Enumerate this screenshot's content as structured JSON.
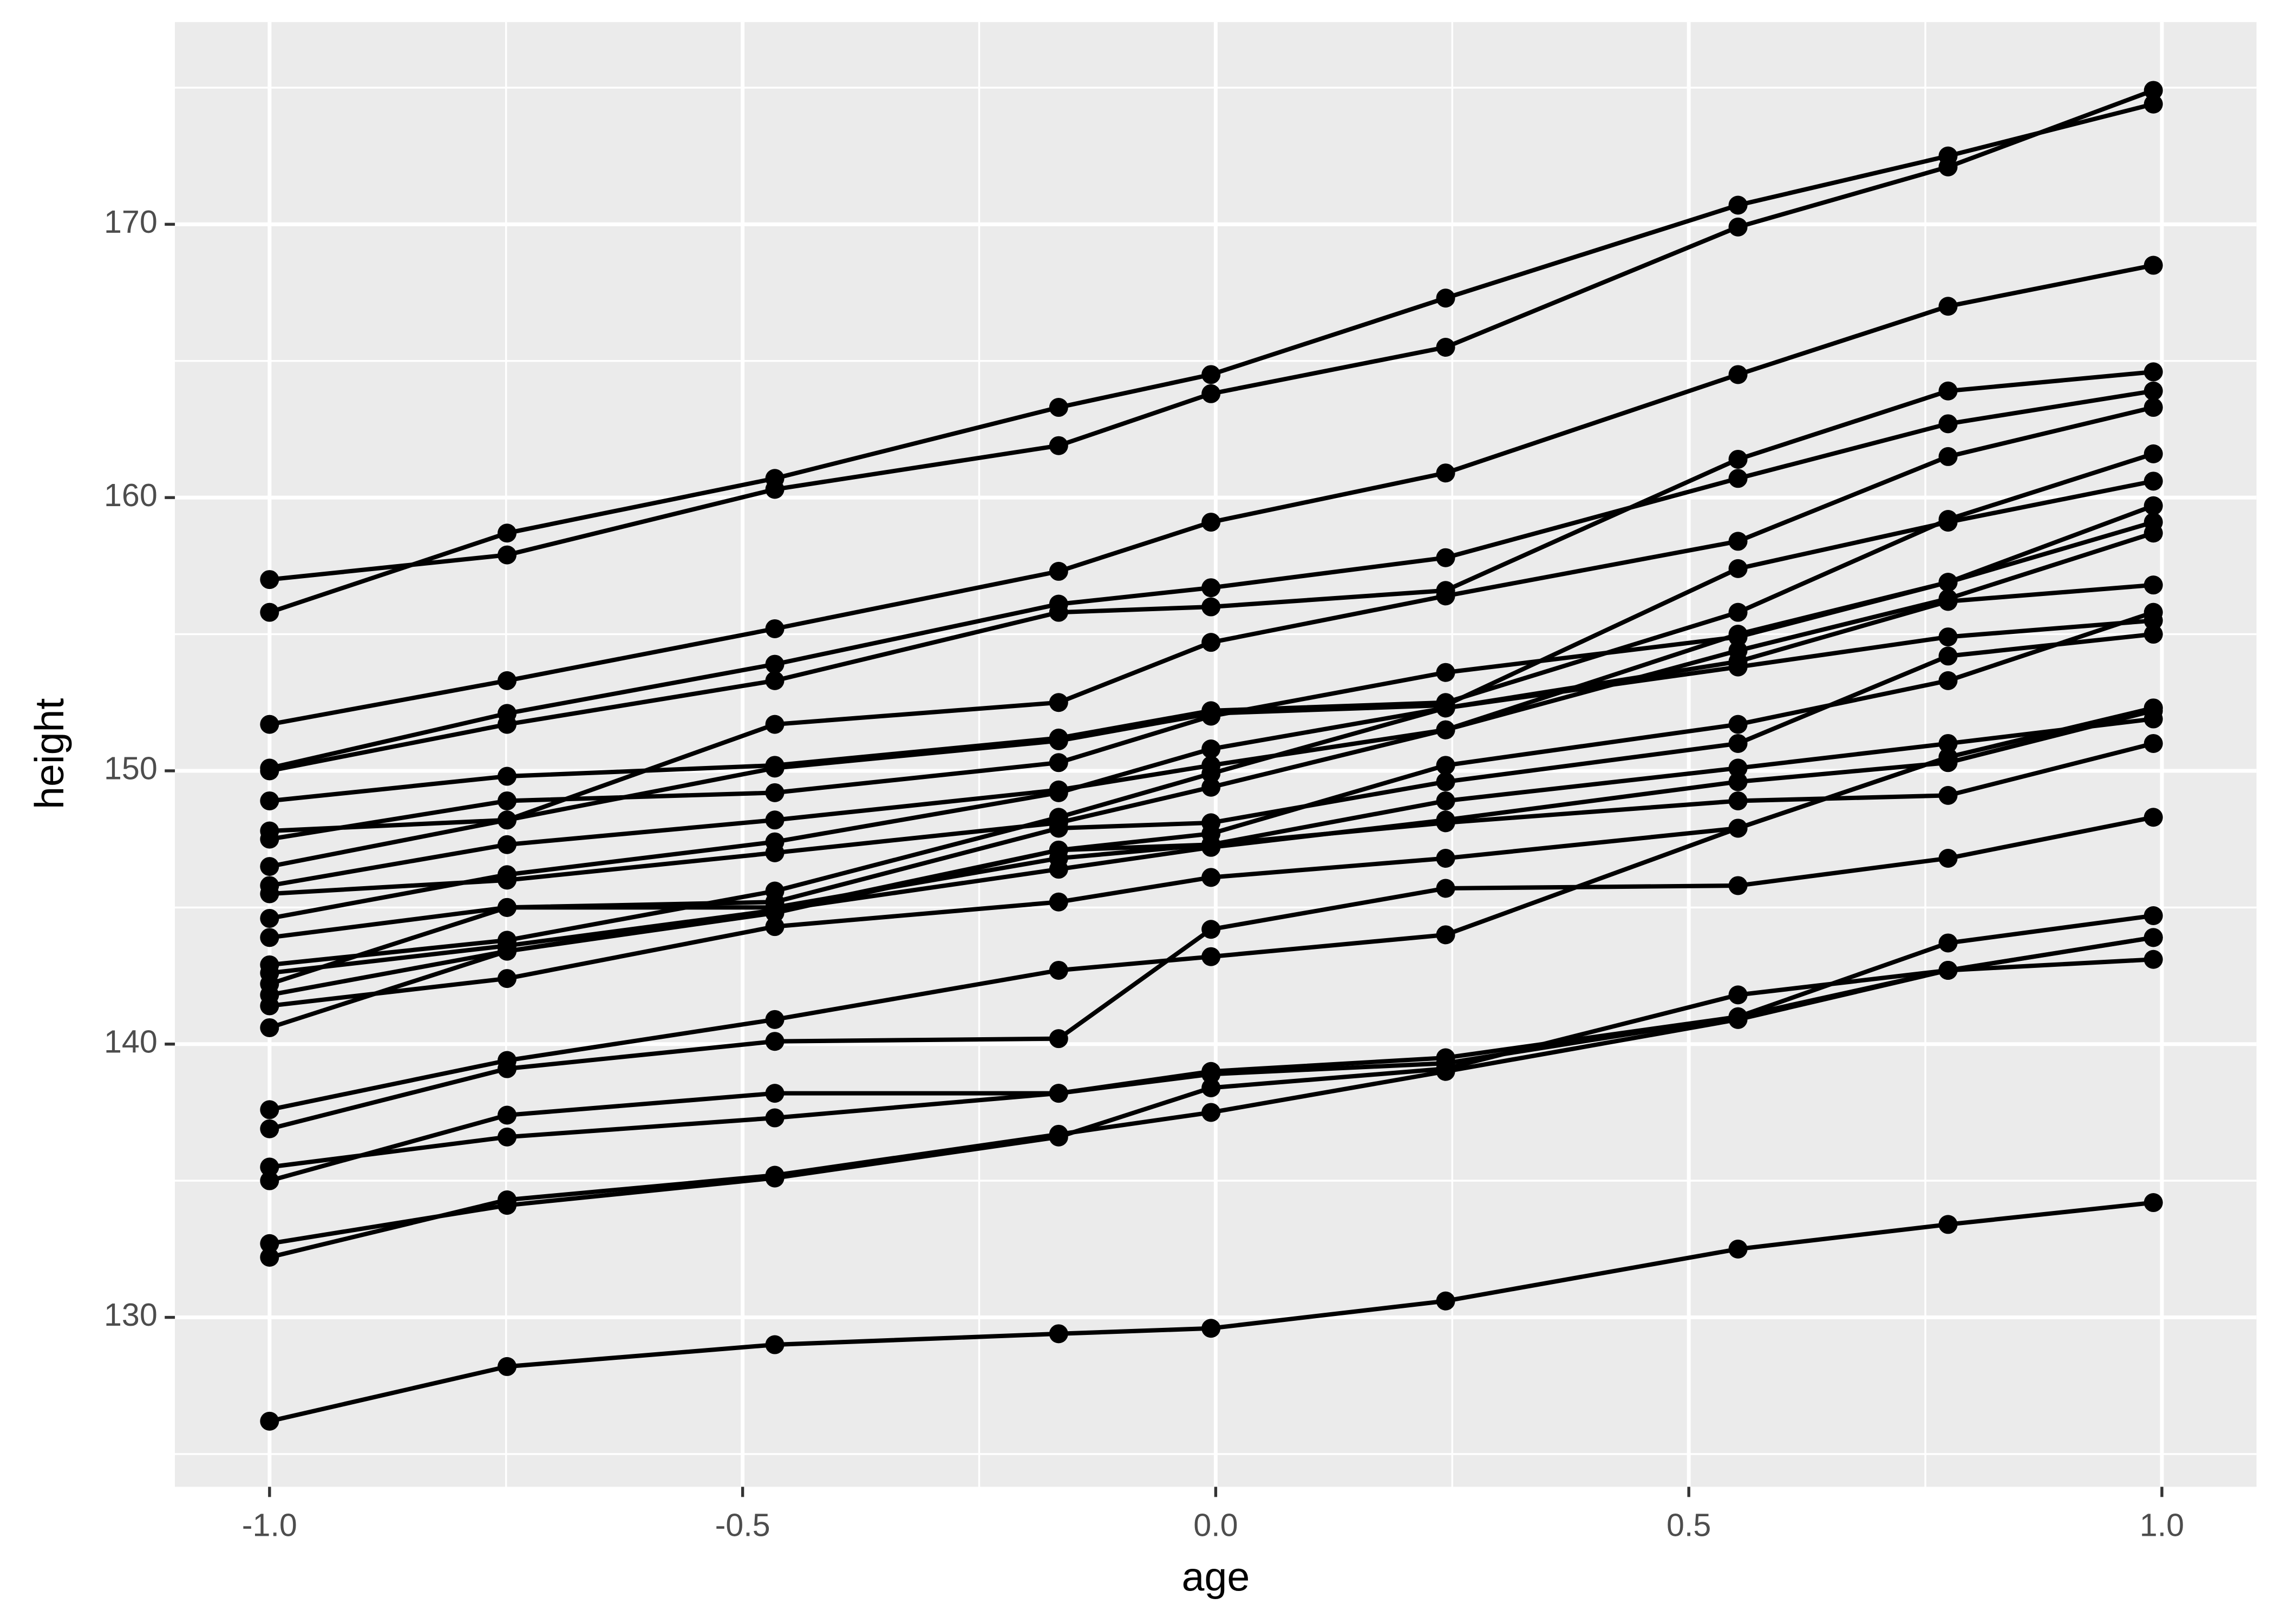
{
  "chart_data": {
    "type": "line",
    "x_label": "age",
    "y_label": "height",
    "x": [
      -1.0,
      -0.749,
      -0.466,
      -0.166,
      -0.005,
      0.243,
      0.552,
      0.774,
      0.991
    ],
    "color": "#000000",
    "grid": true,
    "xlim": [
      -1.1,
      1.1
    ],
    "ylim": [
      123.8,
      177.4
    ],
    "xticks": [
      {
        "value": -1.0,
        "label": "-1.0"
      },
      {
        "value": -0.5,
        "label": "-0.5"
      },
      {
        "value": 0.0,
        "label": "0.0"
      },
      {
        "value": 0.5,
        "label": "0.5"
      },
      {
        "value": 1.0,
        "label": "1.0"
      }
    ],
    "yticks": [
      130,
      140,
      150,
      160,
      170
    ],
    "series": [
      {
        "values": [
          126.2,
          128.2,
          129.0,
          129.4,
          129.6,
          130.6,
          132.5,
          133.4,
          134.2
        ]
      },
      {
        "values": [
          157.0,
          157.9,
          160.3,
          161.9,
          163.8,
          165.5,
          169.9,
          172.1,
          174.9
        ]
      },
      {
        "values": [
          155.8,
          158.7,
          160.7,
          163.3,
          164.5,
          167.3,
          170.7,
          172.5,
          174.4
        ]
      },
      {
        "values": [
          151.7,
          153.3,
          155.2,
          157.3,
          159.1,
          160.9,
          164.5,
          167.0,
          168.5
        ]
      },
      {
        "values": [
          150.1,
          152.1,
          153.9,
          156.1,
          156.7,
          157.8,
          160.7,
          162.7,
          163.9
        ]
      },
      {
        "values": [
          150.0,
          151.7,
          153.3,
          155.8,
          156.0,
          156.6,
          161.4,
          163.9,
          164.6
        ]
      },
      {
        "values": [
          148.9,
          149.8,
          150.2,
          151.2,
          152.2,
          152.5,
          155.8,
          159.2,
          161.6
        ]
      },
      {
        "values": [
          147.8,
          148.2,
          150.1,
          151.1,
          152.1,
          152.4,
          157.4,
          159.1,
          160.6
        ]
      },
      {
        "values": [
          147.5,
          148.9,
          149.2,
          150.3,
          152.0,
          153.6,
          154.9,
          156.9,
          159.7
        ]
      },
      {
        "values": [
          146.5,
          148.2,
          151.7,
          152.5,
          154.7,
          156.4,
          158.4,
          161.5,
          163.3
        ]
      },
      {
        "values": [
          145.8,
          147.3,
          148.2,
          149.3,
          150.2,
          151.5,
          155.0,
          156.9,
          159.1
        ]
      },
      {
        "values": [
          145.5,
          146.0,
          147.0,
          148.1,
          149.4,
          151.5,
          154.4,
          156.3,
          158.7
        ]
      },
      {
        "values": [
          144.6,
          146.2,
          147.4,
          149.2,
          150.8,
          152.3,
          153.8,
          154.9,
          155.5
        ]
      },
      {
        "values": [
          143.9,
          145.0,
          145.2,
          147.9,
          148.1,
          149.6,
          151.0,
          154.2,
          155.0
        ]
      },
      {
        "values": [
          142.9,
          143.8,
          145.6,
          148.3,
          149.9,
          152.3,
          154.0,
          156.2,
          156.8
        ]
      },
      {
        "values": [
          142.6,
          143.6,
          144.9,
          146.4,
          147.2,
          148.2,
          149.6,
          150.3,
          152.2
        ]
      },
      {
        "values": [
          142.2,
          145.0,
          145.0,
          146.8,
          147.3,
          148.9,
          150.1,
          151.0,
          151.9
        ]
      },
      {
        "values": [
          141.8,
          143.4,
          144.9,
          147.1,
          147.3,
          148.1,
          148.9,
          149.1,
          151.0
        ]
      },
      {
        "values": [
          141.4,
          142.4,
          144.3,
          145.2,
          146.1,
          146.8,
          147.9,
          150.5,
          152.3
        ]
      },
      {
        "values": [
          140.6,
          143.4,
          144.8,
          147.1,
          147.7,
          150.2,
          151.7,
          153.3,
          155.8
        ]
      },
      {
        "values": [
          137.6,
          139.4,
          140.9,
          142.7,
          143.2,
          144.0,
          147.9,
          150.5,
          152.3
        ]
      },
      {
        "values": [
          136.9,
          139.1,
          140.1,
          140.2,
          144.2,
          145.7,
          145.8,
          146.8,
          148.3
        ]
      },
      {
        "values": [
          135.5,
          136.6,
          137.3,
          138.2,
          139.0,
          139.5,
          141.0,
          142.7,
          143.1
        ]
      },
      {
        "values": [
          135.0,
          137.4,
          138.2,
          138.2,
          138.9,
          139.3,
          141.0,
          143.7,
          144.7
        ]
      },
      {
        "values": [
          132.7,
          134.1,
          135.1,
          136.6,
          138.4,
          139.1,
          141.8,
          142.7,
          143.9
        ]
      },
      {
        "values": [
          132.2,
          134.3,
          135.2,
          136.7,
          137.5,
          139.0,
          140.9,
          142.7,
          143.9
        ]
      }
    ]
  }
}
